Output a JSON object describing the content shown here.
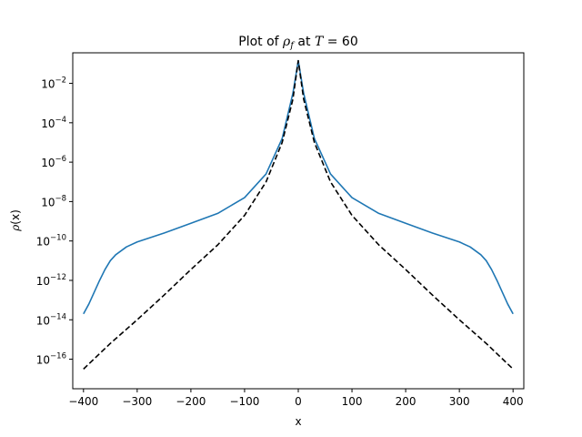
{
  "chart_data": {
    "type": "line",
    "title": {
      "prefix": "Plot of ",
      "symbol": "ρ",
      "subscript": "f",
      "mid": " at ",
      "var": "T",
      "suffix": " = 60"
    },
    "xlabel": "x",
    "ylabel": {
      "symbol": "ρ",
      "arg": "(x)"
    },
    "xlim": [
      -420,
      420
    ],
    "ylim_exponent": [
      -17.5,
      -0.45
    ],
    "yscale": "log",
    "grid": false,
    "legend": "none",
    "xticks": [
      -400,
      -300,
      -200,
      -100,
      0,
      100,
      200,
      300,
      400
    ],
    "xtick_labels": [
      "−400",
      "−300",
      "−200",
      "−100",
      "0",
      "100",
      "200",
      "300",
      "400"
    ],
    "yticks_exponent": [
      -16,
      -14,
      -12,
      -10,
      -8,
      -6,
      -4,
      -2
    ],
    "ytick_labels": [
      "−16",
      "−14",
      "−12",
      "−10",
      "−8",
      "−6",
      "−4",
      "−2"
    ],
    "ytick_base": "10",
    "series": [
      {
        "style": "solid",
        "color": "#1f77b4",
        "x": [
          -400,
          -390,
          -380,
          -370,
          -360,
          -350,
          -340,
          -320,
          -300,
          -250,
          -200,
          -150,
          -100,
          -60,
          -30,
          -10,
          0,
          10,
          30,
          60,
          100,
          150,
          200,
          250,
          300,
          320,
          340,
          350,
          360,
          370,
          380,
          390,
          400
        ],
        "log10_y": [
          -13.7,
          -13.2,
          -12.6,
          -12.0,
          -11.45,
          -11.0,
          -10.7,
          -10.3,
          -10.05,
          -9.6,
          -9.1,
          -8.6,
          -7.8,
          -6.6,
          -4.8,
          -2.5,
          -0.85,
          -2.5,
          -4.8,
          -6.6,
          -7.8,
          -8.6,
          -9.1,
          -9.6,
          -10.05,
          -10.3,
          -10.7,
          -11.0,
          -11.45,
          -12.0,
          -12.6,
          -13.2,
          -13.7
        ]
      },
      {
        "style": "dashed",
        "color": "#000000",
        "x": [
          -400,
          -350,
          -300,
          -250,
          -200,
          -150,
          -100,
          -60,
          -30,
          -10,
          0,
          10,
          30,
          60,
          100,
          150,
          200,
          250,
          300,
          350,
          400
        ],
        "log10_y": [
          -16.5,
          -15.2,
          -14.0,
          -12.75,
          -11.45,
          -10.2,
          -8.7,
          -7.0,
          -5.0,
          -2.8,
          -0.85,
          -2.8,
          -5.0,
          -7.0,
          -8.7,
          -10.2,
          -11.45,
          -12.75,
          -14.0,
          -15.2,
          -16.5
        ]
      }
    ]
  }
}
